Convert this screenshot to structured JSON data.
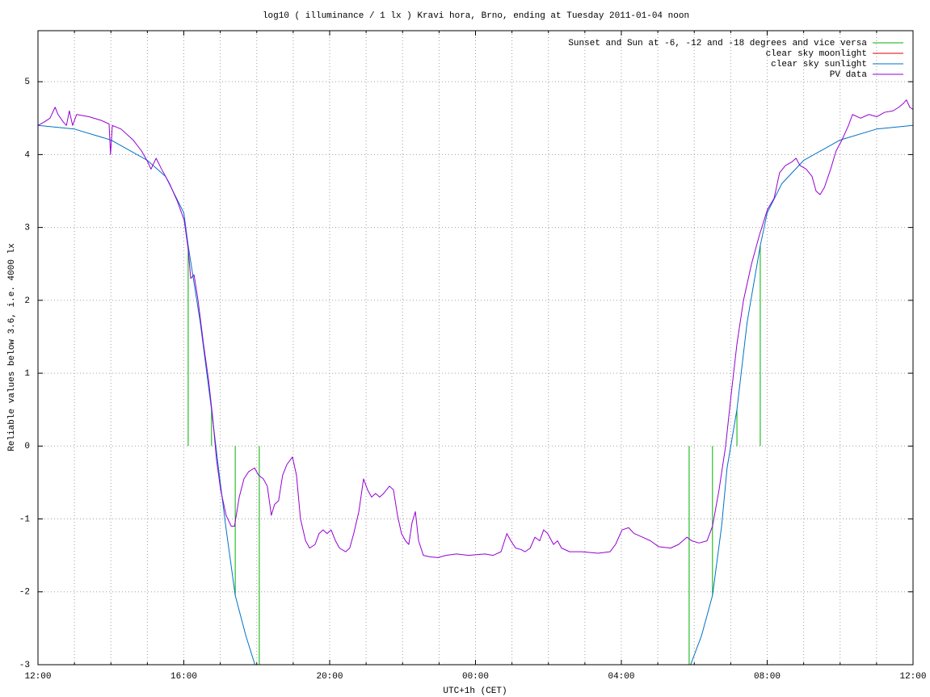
{
  "chart_data": {
    "type": "line",
    "title": "log10 ( illuminance / 1 lx ) Kravi hora, Brno, ending at Tuesday 2011-01-04 noon",
    "y_label": "Reliable values below 3.6, i.e. 4000 lx",
    "x_label": "UTC+1h (CET)",
    "xlim": [
      0,
      24
    ],
    "ylim": [
      -3,
      5.7
    ],
    "xticks": [
      {
        "value": 0,
        "label": "12:00"
      },
      {
        "value": 1,
        "label": null
      },
      {
        "value": 2,
        "label": null
      },
      {
        "value": 3,
        "label": null
      },
      {
        "value": 4,
        "label": "16:00"
      },
      {
        "value": 5,
        "label": null
      },
      {
        "value": 6,
        "label": null
      },
      {
        "value": 7,
        "label": null
      },
      {
        "value": 8,
        "label": "20:00"
      },
      {
        "value": 9,
        "label": null
      },
      {
        "value": 10,
        "label": null
      },
      {
        "value": 11,
        "label": null
      },
      {
        "value": 12,
        "label": "00:00"
      },
      {
        "value": 13,
        "label": null
      },
      {
        "value": 14,
        "label": null
      },
      {
        "value": 15,
        "label": null
      },
      {
        "value": 16,
        "label": "04:00"
      },
      {
        "value": 17,
        "label": null
      },
      {
        "value": 18,
        "label": null
      },
      {
        "value": 19,
        "label": null
      },
      {
        "value": 20,
        "label": "08:00"
      },
      {
        "value": 21,
        "label": null
      },
      {
        "value": 22,
        "label": null
      },
      {
        "value": 23,
        "label": null
      },
      {
        "value": 24,
        "label": "12:00"
      }
    ],
    "yticks": [
      -3,
      -2,
      -1,
      0,
      1,
      2,
      3,
      4,
      5
    ],
    "grid": true,
    "legend": "top-right",
    "series": [
      {
        "name": "Sunset and Sun at -6, -12 and -18 degrees and vice versa",
        "color": "#00b000",
        "style": "impulses",
        "x": [
          4.12,
          4.76,
          5.41,
          6.07,
          17.86,
          18.5,
          19.17,
          19.81
        ],
        "values": [
          2.75,
          0.5,
          -2.05,
          -3,
          -3,
          -2.05,
          0.5,
          2.75
        ]
      },
      {
        "name": "clear sky moonlight",
        "color": "#e00000",
        "style": "lines",
        "x": [],
        "values": []
      },
      {
        "name": "clear sky sunlight",
        "color": "#0072c6",
        "style": "lines",
        "x": [
          0,
          1,
          2,
          3,
          3.5,
          4,
          4.12,
          4.45,
          4.76,
          4.95,
          5.15,
          5.41,
          5.7,
          5.95,
          12,
          17.9,
          18.2,
          18.5,
          18.75,
          18.9,
          19.17,
          19.45,
          19.81,
          20,
          20.4,
          21,
          22,
          23,
          24
        ],
        "values": [
          4.4,
          4.35,
          4.2,
          3.92,
          3.7,
          3.2,
          2.75,
          1.7,
          0.5,
          -0.3,
          -1.1,
          -2.05,
          -2.6,
          -3,
          null,
          -3,
          -2.6,
          -2.05,
          -1.1,
          -0.3,
          0.5,
          1.7,
          2.75,
          3.2,
          3.6,
          3.92,
          4.2,
          4.35,
          4.4
        ]
      },
      {
        "name": "PV data",
        "color": "#9400d3",
        "style": "lines",
        "x": [
          0,
          0.18,
          0.33,
          0.47,
          0.55,
          0.69,
          0.78,
          0.86,
          0.95,
          1.06,
          1.4,
          1.73,
          1.95,
          1.99,
          2.04,
          2.28,
          2.61,
          2.84,
          3.01,
          3.1,
          3.24,
          3.39,
          3.61,
          3.83,
          4.01,
          4.12,
          4.19,
          4.28,
          4.39,
          4.54,
          4.68,
          4.79,
          4.9,
          5.01,
          5.16,
          5.3,
          5.39,
          5.52,
          5.65,
          5.78,
          5.94,
          6.05,
          6.18,
          6.29,
          6.4,
          6.49,
          6.6,
          6.71,
          6.83,
          6.98,
          7.09,
          7.2,
          7.34,
          7.45,
          7.6,
          7.71,
          7.82,
          7.93,
          8.04,
          8.16,
          8.27,
          8.44,
          8.55,
          8.66,
          8.8,
          8.93,
          9.04,
          9.15,
          9.26,
          9.37,
          9.48,
          9.64,
          9.75,
          9.86,
          9.97,
          10.08,
          10.17,
          10.26,
          10.35,
          10.44,
          10.57,
          10.75,
          10.97,
          11.19,
          11.48,
          11.81,
          12.26,
          12.48,
          12.7,
          12.86,
          12.97,
          13.1,
          13.25,
          13.36,
          13.5,
          13.63,
          13.76,
          13.87,
          13.98,
          14.14,
          14.25,
          14.36,
          14.58,
          14.91,
          15.36,
          15.69,
          15.84,
          16.02,
          16.2,
          16.35,
          16.58,
          16.8,
          17.02,
          17.35,
          17.57,
          17.8,
          17.93,
          18.13,
          18.35,
          18.5,
          18.68,
          18.86,
          19.01,
          19.17,
          19.35,
          19.57,
          19.79,
          20.01,
          20.19,
          20.34,
          20.5,
          20.68,
          20.79,
          20.9,
          21.07,
          21.23,
          21.34,
          21.45,
          21.57,
          21.74,
          21.89,
          22.05,
          22.23,
          22.34,
          22.56,
          22.79,
          23.01,
          23.22,
          23.45,
          23.61,
          23.73,
          23.82,
          23.91,
          24
        ],
        "values": [
          4.4,
          4.45,
          4.5,
          4.65,
          4.55,
          4.45,
          4.4,
          4.6,
          4.4,
          4.55,
          4.52,
          4.47,
          4.42,
          4.0,
          4.4,
          4.35,
          4.2,
          4.05,
          3.9,
          3.8,
          3.95,
          3.8,
          3.6,
          3.35,
          3.1,
          2.7,
          2.3,
          2.35,
          2.0,
          1.4,
          0.9,
          0.4,
          -0.2,
          -0.6,
          -0.95,
          -1.1,
          -1.1,
          -0.7,
          -0.45,
          -0.35,
          -0.3,
          -0.4,
          -0.45,
          -0.55,
          -0.95,
          -0.8,
          -0.75,
          -0.4,
          -0.25,
          -0.15,
          -0.4,
          -1.0,
          -1.3,
          -1.4,
          -1.35,
          -1.2,
          -1.15,
          -1.2,
          -1.15,
          -1.3,
          -1.4,
          -1.45,
          -1.4,
          -1.2,
          -0.9,
          -0.45,
          -0.6,
          -0.7,
          -0.65,
          -0.7,
          -0.65,
          -0.55,
          -0.6,
          -0.95,
          -1.2,
          -1.3,
          -1.35,
          -1.05,
          -0.9,
          -1.3,
          -1.5,
          -1.52,
          -1.53,
          -1.5,
          -1.48,
          -1.5,
          -1.48,
          -1.5,
          -1.45,
          -1.2,
          -1.3,
          -1.4,
          -1.42,
          -1.45,
          -1.4,
          -1.25,
          -1.3,
          -1.15,
          -1.2,
          -1.35,
          -1.3,
          -1.4,
          -1.45,
          -1.45,
          -1.47,
          -1.45,
          -1.35,
          -1.15,
          -1.12,
          -1.2,
          -1.25,
          -1.3,
          -1.38,
          -1.4,
          -1.35,
          -1.25,
          -1.3,
          -1.33,
          -1.3,
          -1.1,
          -0.6,
          0.0,
          0.7,
          1.4,
          2.0,
          2.5,
          2.9,
          3.25,
          3.4,
          3.75,
          3.85,
          3.9,
          3.95,
          3.85,
          3.8,
          3.7,
          3.5,
          3.45,
          3.55,
          3.8,
          4.05,
          4.2,
          4.4,
          4.55,
          4.5,
          4.55,
          4.52,
          4.58,
          4.6,
          4.65,
          4.7,
          4.75,
          4.65,
          4.62
        ]
      }
    ]
  }
}
